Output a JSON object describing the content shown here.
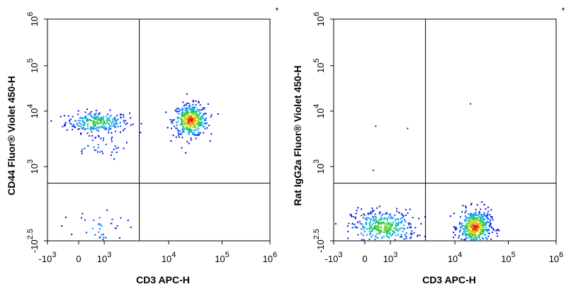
{
  "chart_data": [
    {
      "type": "scatter",
      "plot_style": "flow-cytometry-density",
      "marker": "*",
      "xlabel": "CD3 APC-H",
      "ylabel": "CD44 Fluor® Violet 450-H",
      "x_ticks": [
        {
          "value": -1000,
          "base": "-10",
          "exp": "3"
        },
        {
          "value": 0,
          "base": "0",
          "exp": ""
        },
        {
          "value": 1000,
          "base": "10",
          "exp": "3"
        },
        {
          "value": 10000,
          "base": "10",
          "exp": "4"
        },
        {
          "value": 100000,
          "base": "10",
          "exp": "5"
        },
        {
          "value": 1000000,
          "base": "10",
          "exp": "6"
        }
      ],
      "y_ticks": [
        {
          "value": -316,
          "base": "-10",
          "exp": "2.5"
        },
        {
          "value": 1000,
          "base": "10",
          "exp": "3"
        },
        {
          "value": 10000,
          "base": "10",
          "exp": "4"
        },
        {
          "value": 100000,
          "base": "10",
          "exp": "5"
        },
        {
          "value": 1000000,
          "base": "10",
          "exp": "6"
        }
      ],
      "gate": {
        "x": 3500,
        "y": 450
      },
      "clusters": [
        {
          "x": 700,
          "y": 6500,
          "spread_x": 0.55,
          "spread_y": 0.18,
          "n": 260,
          "peak": 0.55
        },
        {
          "x": 25000,
          "y": 7000,
          "spread_x": 0.3,
          "spread_y": 0.28,
          "n": 420,
          "peak": 1.0
        },
        {
          "x": 800,
          "y": -80,
          "spread_x": 0.45,
          "spread_y": 0.35,
          "n": 45,
          "peak": 0.2
        },
        {
          "x": 700,
          "y": 2500,
          "spread_x": 0.5,
          "spread_y": 0.25,
          "n": 40,
          "peak": 0.15
        }
      ]
    },
    {
      "type": "scatter",
      "plot_style": "flow-cytometry-density",
      "marker": "*",
      "xlabel": "CD3 APC-H",
      "ylabel": "Rat IgG2a Fluor® Violet 450-H",
      "x_ticks": [
        {
          "value": -1000,
          "base": "-10",
          "exp": "3"
        },
        {
          "value": 0,
          "base": "0",
          "exp": ""
        },
        {
          "value": 1000,
          "base": "10",
          "exp": "3"
        },
        {
          "value": 10000,
          "base": "10",
          "exp": "4"
        },
        {
          "value": 100000,
          "base": "10",
          "exp": "5"
        },
        {
          "value": 1000000,
          "base": "10",
          "exp": "6"
        }
      ],
      "y_ticks": [
        {
          "value": -316,
          "base": "-10",
          "exp": "2.5"
        },
        {
          "value": 1000,
          "base": "10",
          "exp": "3"
        },
        {
          "value": 10000,
          "base": "10",
          "exp": "4"
        },
        {
          "value": 100000,
          "base": "10",
          "exp": "5"
        },
        {
          "value": 1000000,
          "base": "10",
          "exp": "6"
        }
      ],
      "gate": {
        "x": 3500,
        "y": 450
      },
      "clusters": [
        {
          "x": 700,
          "y": -60,
          "spread_x": 0.55,
          "spread_y": 0.3,
          "n": 380,
          "peak": 0.6
        },
        {
          "x": 23000,
          "y": -60,
          "spread_x": 0.28,
          "spread_y": 0.3,
          "n": 460,
          "peak": 1.0
        }
      ],
      "outliers": [
        {
          "x": 400,
          "y": 5500
        },
        {
          "x": 1800,
          "y": 5000
        },
        {
          "x": 19000,
          "y": 15000
        },
        {
          "x": 300,
          "y": 900
        }
      ]
    }
  ]
}
